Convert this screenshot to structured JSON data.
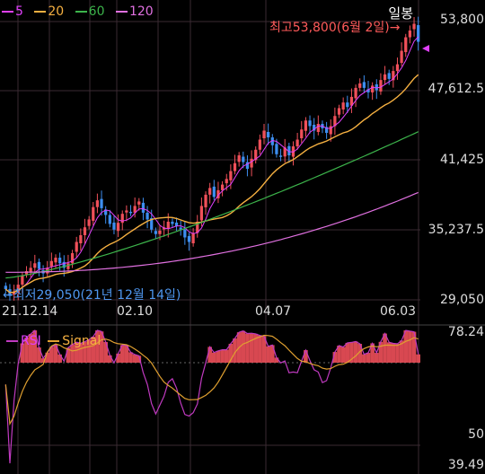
{
  "legend": [
    {
      "label": "5",
      "color": "#e040fb"
    },
    {
      "label": "20",
      "color": "#f5b041"
    },
    {
      "label": "60",
      "color": "#3cb44b"
    },
    {
      "label": "120",
      "color": "#e070e0"
    }
  ],
  "period_label": "일봉",
  "max_label": "최고53,800(6월 2일)→",
  "min_label": "←최저29,050(21년 12월 14일)",
  "price_axis": [
    "53,800",
    "47,612.5",
    "41,425",
    "35,237.5",
    "29,050"
  ],
  "date_labels": [
    "21.12.14",
    "02.10",
    "04.07",
    "06.03"
  ],
  "rsi_legend": {
    "rsi": "RSI",
    "signal": "Signal"
  },
  "rsi_axis": [
    "78.24",
    "50",
    "39.49"
  ],
  "colors": {
    "up": "#f0505a",
    "down": "#3d8ef0",
    "ma5": "#e040fb",
    "ma20": "#f5b041",
    "ma60": "#3cb44b",
    "ma120": "#e070e0",
    "rsi": "#c03ac0",
    "signal": "#e0a030",
    "grid": "#3a2a32"
  },
  "chart_data": {
    "type": "candlestick",
    "ylim": [
      29050,
      53800
    ],
    "rsi_ylim": [
      39.49,
      78.24
    ],
    "close": [
      30000,
      29400,
      29800,
      30400,
      31200,
      31600,
      31900,
      32300,
      31800,
      31400,
      31900,
      32500,
      32800,
      32300,
      31900,
      32300,
      33200,
      34200,
      34800,
      35500,
      36200,
      37300,
      37900,
      37200,
      36600,
      35800,
      35300,
      35900,
      36700,
      37000,
      36800,
      37400,
      37800,
      36800,
      36200,
      35300,
      34900,
      35200,
      35500,
      36000,
      35800,
      35600,
      35300,
      34600,
      34200,
      35000,
      36000,
      37400,
      38400,
      39000,
      38200,
      38800,
      39300,
      39800,
      40500,
      41200,
      41900,
      41300,
      40700,
      41600,
      42400,
      43300,
      44100,
      43500,
      42800,
      42000,
      41800,
      42600,
      41900,
      42700,
      43300,
      44200,
      45000,
      44500,
      44100,
      44700,
      44300,
      43900,
      44500,
      45400,
      46100,
      46600,
      46200,
      47100,
      47900,
      48300,
      47900,
      47500,
      48100,
      47700,
      48600,
      49100,
      48700,
      49400,
      50000,
      51200,
      52400,
      53000,
      53600,
      52000
    ],
    "ma20_end": 48900,
    "ma60_end": 44000,
    "ma120_end": 38600
  }
}
